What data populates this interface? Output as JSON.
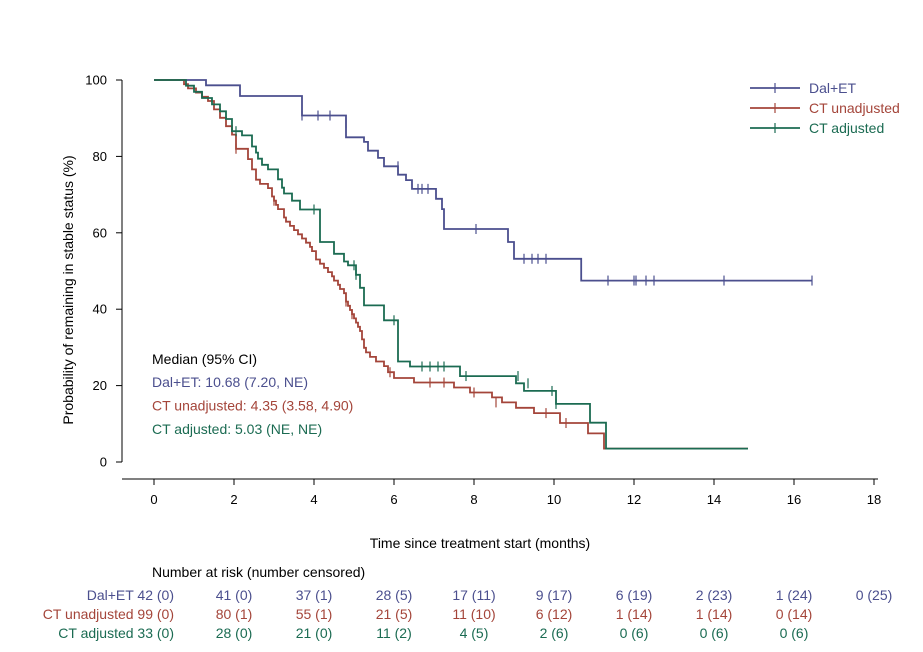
{
  "colors": {
    "dal_et": "#4b4f8e",
    "ct_unadjusted": "#a4453a",
    "ct_adjusted": "#1b6b52",
    "axis": "#000000",
    "text": "#000000"
  },
  "chart_data": {
    "type": "line",
    "subtype": "kaplan-meier step",
    "xlabel": "Time since treatment start (months)",
    "ylabel": "Probability of remaining in stable status (%)",
    "xlim": [
      0,
      18
    ],
    "ylim": [
      0,
      100
    ],
    "x_ticks": [
      "0",
      "2",
      "4",
      "6",
      "8",
      "10",
      "12",
      "14",
      "16",
      "18"
    ],
    "y_ticks": [
      "0",
      "20",
      "40",
      "60",
      "80",
      "100"
    ],
    "grid": false,
    "legend_position": "top-right",
    "legend": [
      {
        "label": "Dal+ET",
        "key": "dal_et"
      },
      {
        "label": "CT unadjusted",
        "key": "ct_unadjusted"
      },
      {
        "label": "CT adjusted",
        "key": "ct_adjusted"
      }
    ],
    "median_box": {
      "title": "Median (95% CI)",
      "lines": [
        {
          "text": "Dal+ET: 10.68 (7.20, NE)",
          "key": "dal_et"
        },
        {
          "text": "CT unadjusted: 4.35 (3.58, 4.90)",
          "key": "ct_unadjusted"
        },
        {
          "text": "CT adjusted: 5.03 (NE, NE)",
          "key": "ct_adjusted"
        }
      ]
    },
    "series": [
      {
        "name": "Dal+ET",
        "key": "dal_et",
        "points": [
          [
            0,
            100
          ],
          [
            1.3,
            100
          ],
          [
            1.3,
            98.6
          ],
          [
            2.15,
            98.6
          ],
          [
            2.15,
            95.8
          ],
          [
            3.7,
            95.8
          ],
          [
            3.7,
            93.1
          ],
          [
            3.7,
            93.1
          ],
          [
            3.7,
            90.7
          ],
          [
            4.8,
            90.7
          ],
          [
            4.8,
            88.7
          ],
          [
            4.8,
            88.7
          ],
          [
            4.8,
            85.0
          ],
          [
            5.25,
            85.0
          ],
          [
            5.25,
            83.8
          ],
          [
            5.35,
            83.8
          ],
          [
            5.35,
            81.5
          ],
          [
            5.6,
            81.5
          ],
          [
            5.6,
            79.6
          ],
          [
            5.75,
            79.6
          ],
          [
            5.75,
            77.4
          ],
          [
            6.1,
            77.4
          ],
          [
            6.1,
            75.2
          ],
          [
            6.3,
            75.2
          ],
          [
            6.3,
            73.8
          ],
          [
            6.45,
            73.8
          ],
          [
            6.45,
            71.5
          ],
          [
            7.05,
            71.5
          ],
          [
            7.05,
            68.9
          ],
          [
            7.2,
            68.9
          ],
          [
            7.2,
            66.2
          ],
          [
            7.25,
            66.2
          ],
          [
            7.25,
            61.0
          ],
          [
            8.85,
            61.0
          ],
          [
            8.85,
            57.6
          ],
          [
            9.0,
            57.6
          ],
          [
            9.0,
            53.2
          ],
          [
            10.68,
            53.2
          ],
          [
            10.68,
            47.5
          ],
          [
            16.45,
            47.5
          ]
        ],
        "censors": [
          [
            3.7,
            90.7
          ],
          [
            4.1,
            90.7
          ],
          [
            4.4,
            90.7
          ],
          [
            4.8,
            88.7
          ],
          [
            6.1,
            77.4
          ],
          [
            6.6,
            71.5
          ],
          [
            6.7,
            71.5
          ],
          [
            6.85,
            71.5
          ],
          [
            8.05,
            61.0
          ],
          [
            9.25,
            53.2
          ],
          [
            9.45,
            53.2
          ],
          [
            9.6,
            53.2
          ],
          [
            9.8,
            53.2
          ],
          [
            11.35,
            47.5
          ],
          [
            12.0,
            47.5
          ],
          [
            12.05,
            47.5
          ],
          [
            12.3,
            47.5
          ],
          [
            12.5,
            47.5
          ],
          [
            14.25,
            47.5
          ],
          [
            16.45,
            47.5
          ]
        ]
      },
      {
        "name": "CT unadjusted",
        "key": "ct_unadjusted",
        "points": [
          [
            0,
            100
          ],
          [
            0.75,
            100
          ],
          [
            0.75,
            98.9
          ],
          [
            0.85,
            98.9
          ],
          [
            0.85,
            97.8
          ],
          [
            1.05,
            97.8
          ],
          [
            1.05,
            96.7
          ],
          [
            1.2,
            96.7
          ],
          [
            1.2,
            95.6
          ],
          [
            1.35,
            95.6
          ],
          [
            1.35,
            94.5
          ],
          [
            1.5,
            94.5
          ],
          [
            1.5,
            92.3
          ],
          [
            1.65,
            92.3
          ],
          [
            1.65,
            90.1
          ],
          [
            1.8,
            90.1
          ],
          [
            1.8,
            87.9
          ],
          [
            1.95,
            87.9
          ],
          [
            1.95,
            85.7
          ],
          [
            2.05,
            85.7
          ],
          [
            2.05,
            82.0
          ],
          [
            2.35,
            82.0
          ],
          [
            2.35,
            79.3
          ],
          [
            2.45,
            79.3
          ],
          [
            2.45,
            76.6
          ],
          [
            2.55,
            76.6
          ],
          [
            2.55,
            73.9
          ],
          [
            2.65,
            73.9
          ],
          [
            2.65,
            72.8
          ],
          [
            2.85,
            72.8
          ],
          [
            2.85,
            71.7
          ],
          [
            2.95,
            71.7
          ],
          [
            2.95,
            69.5
          ],
          [
            3.0,
            69.5
          ],
          [
            3.0,
            68.4
          ],
          [
            3.05,
            68.4
          ],
          [
            3.05,
            67.3
          ],
          [
            3.1,
            67.3
          ],
          [
            3.1,
            66.2
          ],
          [
            3.25,
            66.2
          ],
          [
            3.25,
            64.0
          ],
          [
            3.3,
            64.0
          ],
          [
            3.3,
            62.9
          ],
          [
            3.4,
            62.9
          ],
          [
            3.4,
            61.8
          ],
          [
            3.5,
            61.8
          ],
          [
            3.5,
            60.7
          ],
          [
            3.6,
            60.7
          ],
          [
            3.6,
            59.6
          ],
          [
            3.7,
            59.6
          ],
          [
            3.7,
            58.5
          ],
          [
            3.8,
            58.5
          ],
          [
            3.8,
            57.4
          ],
          [
            3.9,
            57.4
          ],
          [
            3.9,
            56.3
          ],
          [
            3.95,
            56.3
          ],
          [
            3.95,
            55.2
          ],
          [
            4.05,
            55.2
          ],
          [
            4.05,
            53.0
          ],
          [
            4.15,
            53.0
          ],
          [
            4.15,
            51.9
          ],
          [
            4.25,
            51.9
          ],
          [
            4.25,
            50.8
          ],
          [
            4.35,
            50.8
          ],
          [
            4.35,
            49.7
          ],
          [
            4.45,
            49.7
          ],
          [
            4.45,
            48.6
          ],
          [
            4.5,
            48.6
          ],
          [
            4.5,
            47.5
          ],
          [
            4.6,
            47.5
          ],
          [
            4.6,
            46.4
          ],
          [
            4.65,
            46.4
          ],
          [
            4.65,
            45.3
          ],
          [
            4.75,
            45.3
          ],
          [
            4.75,
            44.2
          ],
          [
            4.8,
            44.2
          ],
          [
            4.8,
            42.0
          ],
          [
            4.85,
            42.0
          ],
          [
            4.85,
            40.9
          ],
          [
            4.9,
            40.9
          ],
          [
            4.9,
            39.8
          ],
          [
            4.95,
            39.8
          ],
          [
            4.95,
            38.7
          ],
          [
            5.0,
            38.7
          ],
          [
            5.0,
            37.6
          ],
          [
            5.05,
            37.6
          ],
          [
            5.05,
            36.5
          ],
          [
            5.1,
            36.5
          ],
          [
            5.1,
            35.4
          ],
          [
            5.15,
            35.4
          ],
          [
            5.15,
            34.3
          ],
          [
            5.2,
            34.3
          ],
          [
            5.2,
            32.1
          ],
          [
            5.25,
            32.1
          ],
          [
            5.25,
            29.9
          ],
          [
            5.3,
            29.9
          ],
          [
            5.3,
            28.7
          ],
          [
            5.4,
            28.7
          ],
          [
            5.4,
            27.5
          ],
          [
            5.55,
            27.5
          ],
          [
            5.55,
            26.3
          ],
          [
            5.75,
            26.3
          ],
          [
            5.75,
            25.1
          ],
          [
            5.85,
            25.1
          ],
          [
            5.85,
            23.5
          ],
          [
            6.0,
            23.5
          ],
          [
            6.0,
            22.0
          ],
          [
            6.5,
            22.0
          ],
          [
            6.5,
            20.8
          ],
          [
            7.5,
            20.8
          ],
          [
            7.5,
            19.5
          ],
          [
            7.9,
            19.5
          ],
          [
            7.9,
            18.2
          ],
          [
            8.45,
            18.2
          ],
          [
            8.45,
            16.9
          ],
          [
            8.7,
            16.9
          ],
          [
            8.7,
            15.6
          ],
          [
            9.05,
            15.6
          ],
          [
            9.05,
            14.2
          ],
          [
            9.5,
            14.2
          ],
          [
            9.5,
            12.8
          ],
          [
            10.15,
            12.8
          ],
          [
            10.15,
            10.2
          ],
          [
            10.85,
            10.2
          ],
          [
            10.85,
            7.5
          ],
          [
            11.25,
            7.5
          ],
          [
            11.25,
            3.5
          ],
          [
            14.85,
            3.5
          ]
        ],
        "censors": [
          [
            2.05,
            82.0
          ],
          [
            3.0,
            68.4
          ],
          [
            4.8,
            42.0
          ],
          [
            4.95,
            38.7
          ],
          [
            5.9,
            23.5
          ],
          [
            6.9,
            20.8
          ],
          [
            7.25,
            20.8
          ],
          [
            8.0,
            18.2
          ],
          [
            8.55,
            15.6
          ],
          [
            9.8,
            12.8
          ],
          [
            10.3,
            10.2
          ]
        ]
      },
      {
        "name": "CT adjusted",
        "key": "ct_adjusted",
        "points": [
          [
            0,
            100
          ],
          [
            0.8,
            100
          ],
          [
            0.8,
            98.5
          ],
          [
            1.0,
            98.5
          ],
          [
            1.0,
            96.9
          ],
          [
            1.2,
            96.9
          ],
          [
            1.2,
            95.3
          ],
          [
            1.45,
            95.3
          ],
          [
            1.45,
            93.6
          ],
          [
            1.65,
            93.6
          ],
          [
            1.65,
            91.8
          ],
          [
            1.8,
            91.8
          ],
          [
            1.8,
            89.8
          ],
          [
            1.95,
            89.8
          ],
          [
            1.95,
            86.6
          ],
          [
            2.2,
            86.6
          ],
          [
            2.2,
            85.5
          ],
          [
            2.45,
            85.5
          ],
          [
            2.45,
            82.6
          ],
          [
            2.55,
            82.6
          ],
          [
            2.55,
            81.0
          ],
          [
            2.6,
            81.0
          ],
          [
            2.6,
            79.4
          ],
          [
            2.7,
            79.4
          ],
          [
            2.7,
            77.8
          ],
          [
            2.85,
            77.8
          ],
          [
            2.85,
            76.6
          ],
          [
            3.1,
            76.6
          ],
          [
            3.1,
            74.0
          ],
          [
            3.2,
            74.0
          ],
          [
            3.2,
            71.8
          ],
          [
            3.25,
            71.8
          ],
          [
            3.25,
            70.3
          ],
          [
            3.45,
            70.3
          ],
          [
            3.45,
            68.4
          ],
          [
            3.65,
            68.4
          ],
          [
            3.65,
            66.1
          ],
          [
            4.15,
            66.1
          ],
          [
            4.15,
            57.6
          ],
          [
            4.5,
            57.6
          ],
          [
            4.5,
            54.5
          ],
          [
            4.75,
            54.5
          ],
          [
            4.75,
            52.5
          ],
          [
            4.85,
            52.5
          ],
          [
            4.85,
            51.5
          ],
          [
            5.05,
            51.5
          ],
          [
            5.05,
            49.0
          ],
          [
            5.15,
            49.0
          ],
          [
            5.15,
            45.6
          ],
          [
            5.25,
            45.6
          ],
          [
            5.25,
            41.0
          ],
          [
            5.75,
            41.0
          ],
          [
            5.75,
            37.1
          ],
          [
            6.1,
            37.1
          ],
          [
            6.1,
            26.3
          ],
          [
            6.4,
            26.3
          ],
          [
            6.4,
            25.0
          ],
          [
            7.65,
            25.0
          ],
          [
            7.65,
            22.5
          ],
          [
            9.05,
            22.5
          ],
          [
            9.05,
            20.6
          ],
          [
            9.25,
            20.6
          ],
          [
            9.25,
            18.6
          ],
          [
            10.05,
            18.6
          ],
          [
            10.05,
            15.2
          ],
          [
            10.9,
            15.2
          ],
          [
            10.9,
            10.3
          ],
          [
            11.3,
            10.3
          ],
          [
            11.3,
            3.5
          ],
          [
            14.85,
            3.5
          ]
        ],
        "censors": [
          [
            2.05,
            86.6
          ],
          [
            4.0,
            66.1
          ],
          [
            5.0,
            51.5
          ],
          [
            5.05,
            49.0
          ],
          [
            6.0,
            37.1
          ],
          [
            6.7,
            25.0
          ],
          [
            6.9,
            25.0
          ],
          [
            7.1,
            25.0
          ],
          [
            7.25,
            25.0
          ],
          [
            7.8,
            22.5
          ],
          [
            9.1,
            22.5
          ],
          [
            9.35,
            20.6
          ],
          [
            9.95,
            18.6
          ],
          [
            10.05,
            15.2
          ]
        ]
      }
    ]
  },
  "risk_table": {
    "title": "Number at risk (number censored)",
    "rows": [
      {
        "label": "Dal+ET 42 (0)",
        "key": "dal_et",
        "values": [
          "41 (0)",
          "37 (1)",
          "28 (5)",
          "17 (11)",
          "9 (17)",
          "6 (19)",
          "2 (23)",
          "1 (24)",
          "0 (25)"
        ]
      },
      {
        "label": "CT unadjusted 99 (0)",
        "key": "ct_unadjusted",
        "values": [
          "80 (1)",
          "55 (1)",
          "21 (5)",
          "11 (10)",
          "6 (12)",
          "1 (14)",
          "1 (14)",
          "0 (14)"
        ]
      },
      {
        "label": "CT adjusted 33 (0)",
        "key": "ct_adjusted",
        "values": [
          "28 (0)",
          "21 (0)",
          "11 (2)",
          "4 (5)",
          "2 (6)",
          "0 (6)",
          "0 (6)",
          "0 (6)"
        ]
      }
    ]
  }
}
